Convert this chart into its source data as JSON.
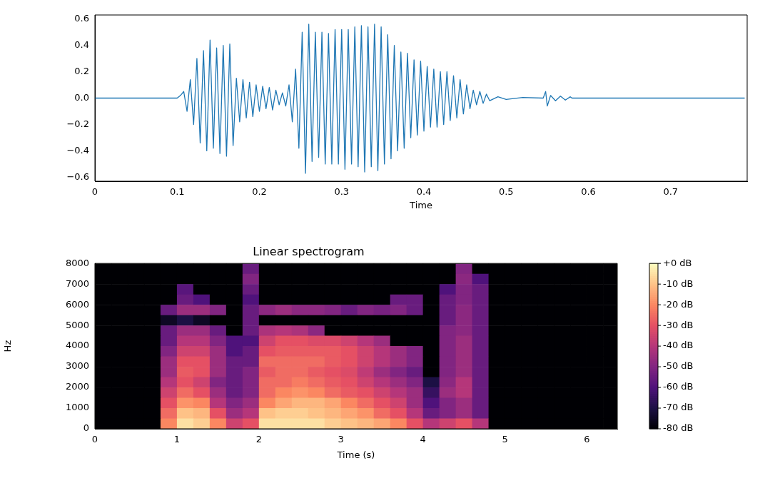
{
  "chart_data": [
    {
      "type": "line",
      "xlabel": "Time",
      "color": "#1f77b4",
      "xlim": [
        0,
        0.793
      ],
      "ylim": [
        -0.63,
        0.63
      ],
      "xticks": [
        {
          "value": 0,
          "label": "0"
        },
        0.1,
        0.2,
        0.3,
        0.4,
        0.5,
        0.6,
        0.7
      ],
      "yticks": [
        {
          "value": -0.6,
          "label": "−0.6"
        },
        {
          "value": -0.4,
          "label": "−0.4"
        },
        {
          "value": -0.2,
          "label": "−0.2"
        },
        {
          "value": 0,
          "label": "0.0"
        },
        0.2,
        0.4,
        0.6
      ],
      "x": [
        0,
        0.1,
        0.104,
        0.108,
        0.112,
        0.116,
        0.12,
        0.124,
        0.128,
        0.132,
        0.136,
        0.14,
        0.144,
        0.148,
        0.152,
        0.156,
        0.16,
        0.164,
        0.168,
        0.172,
        0.176,
        0.18,
        0.184,
        0.188,
        0.192,
        0.196,
        0.2,
        0.204,
        0.208,
        0.212,
        0.216,
        0.22,
        0.224,
        0.228,
        0.232,
        0.236,
        0.24,
        0.244,
        0.248,
        0.252,
        0.256,
        0.26,
        0.264,
        0.268,
        0.272,
        0.276,
        0.28,
        0.284,
        0.288,
        0.292,
        0.296,
        0.3,
        0.304,
        0.308,
        0.312,
        0.316,
        0.32,
        0.324,
        0.328,
        0.332,
        0.336,
        0.34,
        0.344,
        0.348,
        0.352,
        0.356,
        0.36,
        0.364,
        0.368,
        0.372,
        0.376,
        0.38,
        0.384,
        0.388,
        0.392,
        0.396,
        0.4,
        0.404,
        0.408,
        0.412,
        0.416,
        0.42,
        0.424,
        0.428,
        0.432,
        0.436,
        0.44,
        0.444,
        0.448,
        0.452,
        0.456,
        0.46,
        0.464,
        0.468,
        0.472,
        0.476,
        0.48,
        0.49,
        0.5,
        0.52,
        0.545,
        0.548,
        0.55,
        0.554,
        0.56,
        0.566,
        0.572,
        0.578,
        0.58,
        0.79
      ],
      "values": [
        0,
        0,
        0.02,
        0.05,
        -0.1,
        0.14,
        -0.2,
        0.3,
        -0.34,
        0.36,
        -0.4,
        0.44,
        -0.38,
        0.38,
        -0.42,
        0.4,
        -0.44,
        0.41,
        -0.36,
        0.15,
        -0.18,
        0.14,
        -0.15,
        0.12,
        -0.14,
        0.1,
        -0.1,
        0.09,
        -0.08,
        0.08,
        -0.09,
        0.06,
        -0.05,
        0.04,
        -0.06,
        0.1,
        -0.18,
        0.22,
        -0.38,
        0.5,
        -0.57,
        0.56,
        -0.48,
        0.5,
        -0.45,
        0.5,
        -0.5,
        0.49,
        -0.5,
        0.52,
        -0.5,
        0.52,
        -0.54,
        0.52,
        -0.5,
        0.54,
        -0.52,
        0.55,
        -0.56,
        0.54,
        -0.52,
        0.56,
        -0.55,
        0.54,
        -0.5,
        0.48,
        -0.46,
        0.4,
        -0.4,
        0.35,
        -0.38,
        0.34,
        -0.3,
        0.29,
        -0.28,
        0.28,
        -0.25,
        0.24,
        -0.22,
        0.22,
        -0.22,
        0.2,
        -0.2,
        0.2,
        -0.17,
        0.17,
        -0.15,
        0.14,
        -0.12,
        0.1,
        -0.08,
        0.06,
        -0.05,
        0.05,
        -0.04,
        0.03,
        -0.02,
        0.01,
        -0.01,
        0.005,
        0,
        0.05,
        -0.06,
        0.02,
        -0.02,
        0.015,
        -0.015,
        0.01,
        0,
        0
      ]
    },
    {
      "type": "heatmap",
      "title": "Linear spectrogram",
      "xlabel": "Time (s)",
      "ylabel": "Hz",
      "xlim": [
        0,
        6.37
      ],
      "ylim": [
        0,
        8000
      ],
      "xticks": [
        0,
        1,
        2,
        3,
        4,
        5,
        6
      ],
      "yticks": [
        0,
        1000,
        2000,
        3000,
        4000,
        5000,
        6000,
        7000,
        8000
      ],
      "clim": [
        -80,
        0
      ],
      "cticks": [
        {
          "value": 0,
          "label": "+0 dB"
        },
        {
          "value": -10,
          "label": "-10 dB"
        },
        {
          "value": -20,
          "label": "-20 dB"
        },
        {
          "value": -30,
          "label": "-30 dB"
        },
        {
          "value": -40,
          "label": "-40 dB"
        },
        {
          "value": -50,
          "label": "-50 dB"
        },
        {
          "value": -60,
          "label": "-60 dB"
        },
        {
          "value": -70,
          "label": "-70 dB"
        },
        {
          "value": -80,
          "label": "-80 dB"
        }
      ],
      "x": [
        0.1,
        0.3,
        0.5,
        0.7,
        0.9,
        1.1,
        1.3,
        1.5,
        1.7,
        1.9,
        2.1,
        2.3,
        2.5,
        2.7,
        2.9,
        3.1,
        3.3,
        3.5,
        3.7,
        3.9,
        4.1,
        4.3,
        4.5,
        4.7,
        4.9,
        5.1,
        5.3,
        5.5,
        5.7,
        5.9,
        6.1,
        6.3
      ],
      "cells": [
        [
          -80,
          -80,
          -80,
          -80,
          -80,
          -80,
          -80,
          -80,
          -80,
          -55,
          -80,
          -80,
          -80,
          -80,
          -80,
          -80,
          -80,
          -80,
          -80,
          -80,
          -80,
          -80,
          -50,
          -80,
          -80,
          -80,
          -80,
          -80,
          -80,
          -80,
          -80,
          -80
        ],
        [
          -80,
          -80,
          -80,
          -80,
          -80,
          -80,
          -80,
          -80,
          -80,
          -50,
          -80,
          -80,
          -80,
          -80,
          -80,
          -80,
          -80,
          -80,
          -80,
          -80,
          -80,
          -80,
          -48,
          -60,
          -80,
          -80,
          -80,
          -80,
          -80,
          -80,
          -80,
          -80
        ],
        [
          -80,
          -80,
          -80,
          -80,
          -80,
          -58,
          -80,
          -80,
          -80,
          -55,
          -80,
          -80,
          -80,
          -80,
          -80,
          -80,
          -80,
          -80,
          -80,
          -80,
          -80,
          -60,
          -50,
          -55,
          -80,
          -80,
          -80,
          -80,
          -80,
          -80,
          -80,
          -80
        ],
        [
          -80,
          -80,
          -80,
          -80,
          -80,
          -55,
          -60,
          -80,
          -80,
          -60,
          -80,
          -80,
          -80,
          -80,
          -80,
          -80,
          -80,
          -80,
          -55,
          -55,
          -80,
          -55,
          -50,
          -55,
          -80,
          -80,
          -80,
          -80,
          -80,
          -80,
          -80,
          -80
        ],
        [
          -80,
          -80,
          -80,
          -80,
          -55,
          -45,
          -45,
          -50,
          -80,
          -55,
          -48,
          -45,
          -48,
          -48,
          -50,
          -55,
          -50,
          -52,
          -50,
          -55,
          -80,
          -55,
          -48,
          -55,
          -80,
          -80,
          -80,
          -80,
          -80,
          -80,
          -80,
          -80
        ],
        [
          -80,
          -80,
          -80,
          -80,
          -75,
          -70,
          -75,
          -80,
          -80,
          -55,
          -80,
          -80,
          -80,
          -80,
          -80,
          -80,
          -80,
          -80,
          -80,
          -80,
          -80,
          -55,
          -48,
          -55,
          -80,
          -80,
          -80,
          -80,
          -80,
          -80,
          -80,
          -80
        ],
        [
          -80,
          -80,
          -80,
          -80,
          -55,
          -45,
          -45,
          -55,
          -80,
          -55,
          -42,
          -40,
          -42,
          -48,
          -80,
          -80,
          -80,
          -80,
          -80,
          -80,
          -80,
          -50,
          -48,
          -55,
          -80,
          -80,
          -80,
          -80,
          -80,
          -80,
          -80,
          -80
        ],
        [
          -80,
          -80,
          -80,
          -80,
          -55,
          -40,
          -40,
          -50,
          -60,
          -60,
          -35,
          -30,
          -30,
          -32,
          -32,
          -35,
          -40,
          -45,
          -80,
          -80,
          -80,
          -50,
          -45,
          -55,
          -80,
          -80,
          -80,
          -80,
          -80,
          -80,
          -80,
          -80
        ],
        [
          -80,
          -80,
          -80,
          -80,
          -50,
          -35,
          -35,
          -45,
          -60,
          -55,
          -30,
          -28,
          -28,
          -28,
          -28,
          -30,
          -35,
          -40,
          -45,
          -50,
          -80,
          -50,
          -45,
          -55,
          -80,
          -80,
          -80,
          -80,
          -80,
          -80,
          -80,
          -80
        ],
        [
          -80,
          -80,
          -80,
          -80,
          -45,
          -30,
          -30,
          -45,
          -55,
          -55,
          -25,
          -25,
          -25,
          -25,
          -28,
          -30,
          -35,
          -40,
          -45,
          -50,
          -80,
          -50,
          -45,
          -55,
          -80,
          -80,
          -80,
          -80,
          -80,
          -80,
          -80,
          -80
        ],
        [
          -80,
          -80,
          -80,
          -80,
          -45,
          -28,
          -30,
          -45,
          -55,
          -50,
          -28,
          -25,
          -25,
          -28,
          -30,
          -32,
          -38,
          -45,
          -50,
          -55,
          -80,
          -50,
          -45,
          -55,
          -80,
          -80,
          -80,
          -80,
          -80,
          -80,
          -80,
          -80
        ],
        [
          -80,
          -80,
          -80,
          -80,
          -40,
          -30,
          -35,
          -50,
          -55,
          -50,
          -25,
          -25,
          -22,
          -25,
          -28,
          -30,
          -35,
          -40,
          -45,
          -50,
          -70,
          -48,
          -40,
          -55,
          -80,
          -80,
          -80,
          -80,
          -80,
          -80,
          -80,
          -80
        ],
        [
          -80,
          -80,
          -80,
          -80,
          -35,
          -25,
          -30,
          -45,
          -55,
          -50,
          -25,
          -20,
          -18,
          -20,
          -25,
          -28,
          -30,
          -35,
          -40,
          -45,
          -65,
          -45,
          -40,
          -55,
          -80,
          -80,
          -80,
          -80,
          -80,
          -80,
          -80,
          -80
        ],
        [
          -80,
          -80,
          -80,
          -80,
          -30,
          -18,
          -20,
          -40,
          -50,
          -45,
          -20,
          -15,
          -12,
          -12,
          -15,
          -20,
          -25,
          -30,
          -35,
          -45,
          -60,
          -50,
          -45,
          -55,
          -80,
          -80,
          -80,
          -80,
          -80,
          -80,
          -80,
          -80
        ],
        [
          -80,
          -80,
          -80,
          -80,
          -25,
          -10,
          -12,
          -30,
          -45,
          -40,
          -10,
          -8,
          -8,
          -10,
          -12,
          -15,
          -18,
          -25,
          -30,
          -40,
          -55,
          -50,
          -45,
          -55,
          -80,
          -80,
          -80,
          -80,
          -80,
          -80,
          -80,
          -80
        ],
        [
          -80,
          -80,
          -80,
          -80,
          -20,
          -5,
          -8,
          -20,
          -35,
          -30,
          -5,
          -5,
          -5,
          -5,
          -8,
          -10,
          -12,
          -15,
          -20,
          -30,
          -40,
          -35,
          -30,
          -40,
          -80,
          -80,
          -80,
          -80,
          -80,
          -80,
          -80,
          -80
        ]
      ]
    }
  ]
}
